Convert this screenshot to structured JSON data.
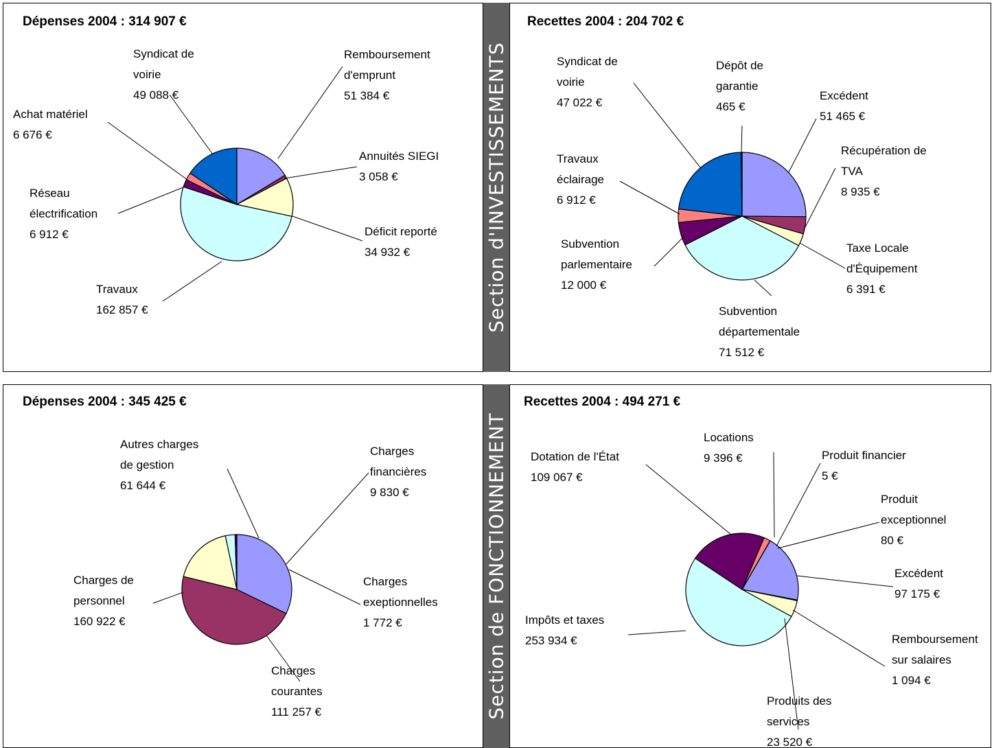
{
  "sections": {
    "investissement": "Section d'INVESTISSEMENTS",
    "fonctionnement": "Section de FONCTIONNEMENT"
  },
  "chart_data": [
    {
      "type": "pie",
      "title": "Dépenses 2004 : 314 907 €",
      "slices": [
        {
          "label": [
            "Remboursement",
            "d'emprunt",
            "51 384 €"
          ],
          "value": 51384,
          "color": "#9999ff"
        },
        {
          "label": [
            "Annuités SIEGI",
            "3 058 €"
          ],
          "value": 3058,
          "color": "#993366"
        },
        {
          "label": [
            "Déficit reporté",
            "34 932 €"
          ],
          "value": 34932,
          "color": "#ffffcc"
        },
        {
          "label": [
            "Travaux",
            "162 857 €"
          ],
          "value": 162857,
          "color": "#ccffff"
        },
        {
          "label": [
            "Réseau",
            "électrification",
            "6 912 €"
          ],
          "value": 6912,
          "color": "#660066"
        },
        {
          "label": [
            "Achat matériel",
            "6 676 €"
          ],
          "value": 6676,
          "color": "#ff8080"
        },
        {
          "label": [
            "Syndicat de",
            "voirie",
            "49 088 €"
          ],
          "value": 49088,
          "color": "#0066cc"
        }
      ]
    },
    {
      "type": "pie",
      "title": "Recettes 2004 : 204 702 €",
      "slices": [
        {
          "label": [
            "Excédent",
            "51 465 €"
          ],
          "value": 51465,
          "color": "#9999ff"
        },
        {
          "label": [
            "Récupération de",
            "TVA",
            "8 935 €"
          ],
          "value": 8935,
          "color": "#993366"
        },
        {
          "label": [
            "Taxe Locale",
            "d'Équipement",
            "6 391 €"
          ],
          "value": 6391,
          "color": "#ffffcc"
        },
        {
          "label": [
            "Subvention",
            "départementale",
            "71 512 €"
          ],
          "value": 71512,
          "color": "#ccffff"
        },
        {
          "label": [
            "Subvention",
            "parlementaire",
            "12 000 €"
          ],
          "value": 12000,
          "color": "#660066"
        },
        {
          "label": [
            "Travaux",
            "éclairage",
            "6 912 €"
          ],
          "value": 6912,
          "color": "#ff8080"
        },
        {
          "label": [
            "Syndicat de",
            "voirie",
            "47 022 €"
          ],
          "value": 47022,
          "color": "#0066cc"
        },
        {
          "label": [
            "Dépôt de",
            "garantie",
            "465 €"
          ],
          "value": 465,
          "color": "#ccccff"
        }
      ]
    },
    {
      "type": "pie",
      "title": "Dépenses 2004 : 345 425 €",
      "slices": [
        {
          "label": [
            "Charges",
            "courantes",
            "111 257 €"
          ],
          "value": 111257,
          "color": "#9999ff"
        },
        {
          "label": [
            "Charges de",
            "personnel",
            "160 922 €"
          ],
          "value": 160922,
          "color": "#993366"
        },
        {
          "label": [
            "Autres charges",
            "de gestion",
            "61 644 €"
          ],
          "value": 61644,
          "color": "#ffffcc"
        },
        {
          "label": [
            "Charges",
            "financières",
            "9 830 €"
          ],
          "value": 9830,
          "color": "#ccffff"
        },
        {
          "label": [
            "Charges",
            "exeptionnelles",
            "1 772 €"
          ],
          "value": 1772,
          "color": "#660066"
        }
      ]
    },
    {
      "type": "pie",
      "title": "Recettes 2004 : 494 271 €",
      "slices": [
        {
          "label": [
            "Excédent",
            "97 175 €"
          ],
          "value": 97175,
          "color": "#9999ff"
        },
        {
          "label": [
            "Remboursement",
            "sur salaires",
            "1 094 €"
          ],
          "value": 1094,
          "color": "#993366"
        },
        {
          "label": [
            "Produits des",
            "services",
            "23 520 €"
          ],
          "value": 23520,
          "color": "#ffffcc"
        },
        {
          "label": [
            "Impôts et taxes",
            "253 934 €"
          ],
          "value": 253934,
          "color": "#ccffff"
        },
        {
          "label": [
            "Dotation de l'État",
            "109 067 €"
          ],
          "value": 109067,
          "color": "#660066"
        },
        {
          "label": [
            "Locations",
            "9 396 €"
          ],
          "value": 9396,
          "color": "#ff8080"
        },
        {
          "label": [
            "Produit financier",
            "5 €"
          ],
          "value": 5,
          "color": "#0066cc"
        },
        {
          "label": [
            "Produit",
            "exceptionnel",
            "80 €"
          ],
          "value": 80,
          "color": "#ccccff"
        }
      ]
    }
  ]
}
